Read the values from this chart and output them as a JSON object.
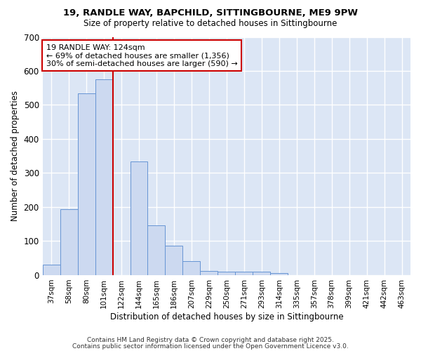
{
  "title1": "19, RANDLE WAY, BAPCHILD, SITTINGBOURNE, ME9 9PW",
  "title2": "Size of property relative to detached houses in Sittingbourne",
  "xlabel": "Distribution of detached houses by size in Sittingbourne",
  "ylabel": "Number of detached properties",
  "bin_labels": [
    "37sqm",
    "58sqm",
    "80sqm",
    "101sqm",
    "122sqm",
    "144sqm",
    "165sqm",
    "186sqm",
    "207sqm",
    "229sqm",
    "250sqm",
    "271sqm",
    "293sqm",
    "314sqm",
    "335sqm",
    "357sqm",
    "378sqm",
    "399sqm",
    "421sqm",
    "442sqm",
    "463sqm"
  ],
  "bin_values": [
    30,
    193,
    535,
    575,
    0,
    335,
    147,
    87,
    42,
    12,
    10,
    10,
    10,
    6,
    0,
    0,
    0,
    0,
    0,
    0,
    0
  ],
  "bar_color": "#ccd9f0",
  "bar_edge_color": "#6694d4",
  "vline_color": "#cc0000",
  "annotation_text": "19 RANDLE WAY: 124sqm\n← 69% of detached houses are smaller (1,356)\n30% of semi-detached houses are larger (590) →",
  "annotation_box_color": "#ffffff",
  "annotation_box_edge": "#cc0000",
  "ylim": [
    0,
    700
  ],
  "yticks": [
    0,
    100,
    200,
    300,
    400,
    500,
    600,
    700
  ],
  "fig_bg_color": "#ffffff",
  "axes_bg_color": "#dce6f5",
  "grid_color": "#ffffff",
  "footer_line1": "Contains HM Land Registry data © Crown copyright and database right 2025.",
  "footer_line2": "Contains public sector information licensed under the Open Government Licence v3.0."
}
